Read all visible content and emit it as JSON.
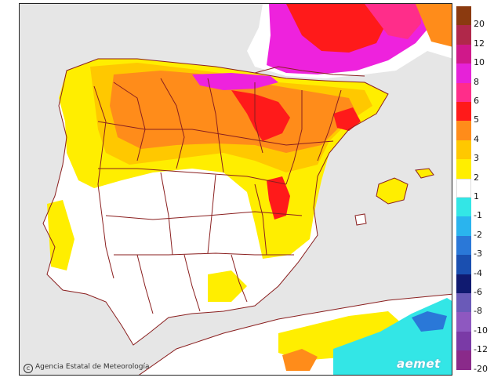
{
  "map": {
    "credit": "Agencia Estatal de Meteorología",
    "logo_text": "aemet",
    "colors": {
      "sea": "#e6e6e6",
      "land": "#ffffff",
      "borders": "#8a1f1f",
      "anomaly_1": "#ffee00",
      "anomaly_2": "#ffc800",
      "anomaly_3": "#ff8c1a",
      "anomaly_4": "#ff1a1a",
      "anomaly_5": "#ff2d8a",
      "anomaly_6": "#ee22dd",
      "neg_1": "#33e6e6",
      "neg_3": "#2a78d8"
    }
  },
  "legend": {
    "items": [
      {
        "label": "20",
        "color": "#8b3a0f"
      },
      {
        "label": "12",
        "color": "#b0284a"
      },
      {
        "label": "10",
        "color": "#d0188a"
      },
      {
        "label": "8",
        "color": "#e622d8"
      },
      {
        "label": "6",
        "color": "#ff2d8a"
      },
      {
        "label": "5",
        "color": "#ff1a1a"
      },
      {
        "label": "4",
        "color": "#ff8c1a"
      },
      {
        "label": "3",
        "color": "#ffc800"
      },
      {
        "label": "2",
        "color": "#ffee00"
      },
      {
        "label": "1",
        "color": "#ffffff"
      },
      {
        "label": "-1",
        "color": "#33e6e6"
      },
      {
        "label": "-2",
        "color": "#2ab4ee"
      },
      {
        "label": "-3",
        "color": "#2a78d8"
      },
      {
        "label": "-4",
        "color": "#1a4fb0"
      },
      {
        "label": "-6",
        "color": "#101a70"
      },
      {
        "label": "-8",
        "color": "#6a5ab8"
      },
      {
        "label": "-10",
        "color": "#8e58c0"
      },
      {
        "label": "-12",
        "color": "#7a3aa6"
      },
      {
        "label": "-20",
        "color": "#8a2a8a"
      }
    ]
  }
}
